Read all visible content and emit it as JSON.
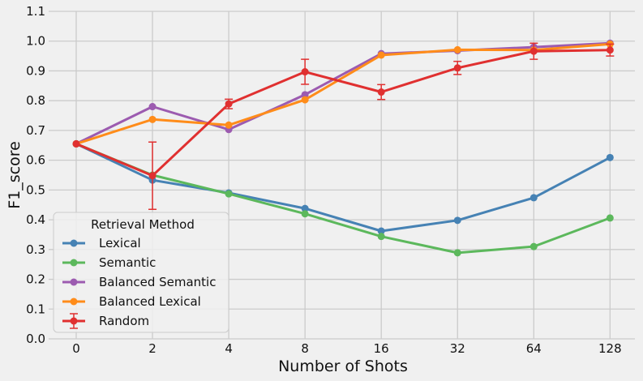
{
  "chart_data": {
    "type": "line",
    "title": "",
    "xlabel": "Number of Shots",
    "ylabel": "F1_score",
    "categories": [
      "0",
      "2",
      "4",
      "8",
      "16",
      "32",
      "64",
      "128"
    ],
    "ylim": [
      0.0,
      1.1
    ],
    "yticks": [
      "0.0",
      "0.1",
      "0.2",
      "0.3",
      "0.4",
      "0.5",
      "0.6",
      "0.7",
      "0.8",
      "0.9",
      "1.0",
      "1.1"
    ],
    "grid": true,
    "legend": {
      "title": "Retrieval Method",
      "placement": "lower-left"
    },
    "series": [
      {
        "name": "Lexical",
        "color": "#4682b4",
        "values": [
          0.655,
          0.533,
          0.49,
          0.438,
          0.362,
          0.398,
          0.474,
          0.609
        ]
      },
      {
        "name": "Semantic",
        "color": "#5cb85c",
        "values": [
          0.655,
          0.55,
          0.487,
          0.42,
          0.344,
          0.289,
          0.31,
          0.406
        ]
      },
      {
        "name": "Balanced Semantic",
        "color": "#9c5bb0",
        "values": [
          0.655,
          0.78,
          0.703,
          0.82,
          0.958,
          0.968,
          0.98,
          0.993
        ]
      },
      {
        "name": "Balanced Lexical",
        "color": "#ff8c1a",
        "values": [
          0.655,
          0.737,
          0.718,
          0.803,
          0.953,
          0.971,
          0.97,
          0.99
        ]
      },
      {
        "name": "Random",
        "color": "#e03030",
        "values": [
          0.655,
          0.548,
          0.789,
          0.897,
          0.829,
          0.91,
          0.966,
          0.97
        ],
        "error": [
          0.0,
          0.113,
          0.016,
          0.042,
          0.025,
          0.022,
          0.027,
          0.02
        ]
      }
    ]
  }
}
